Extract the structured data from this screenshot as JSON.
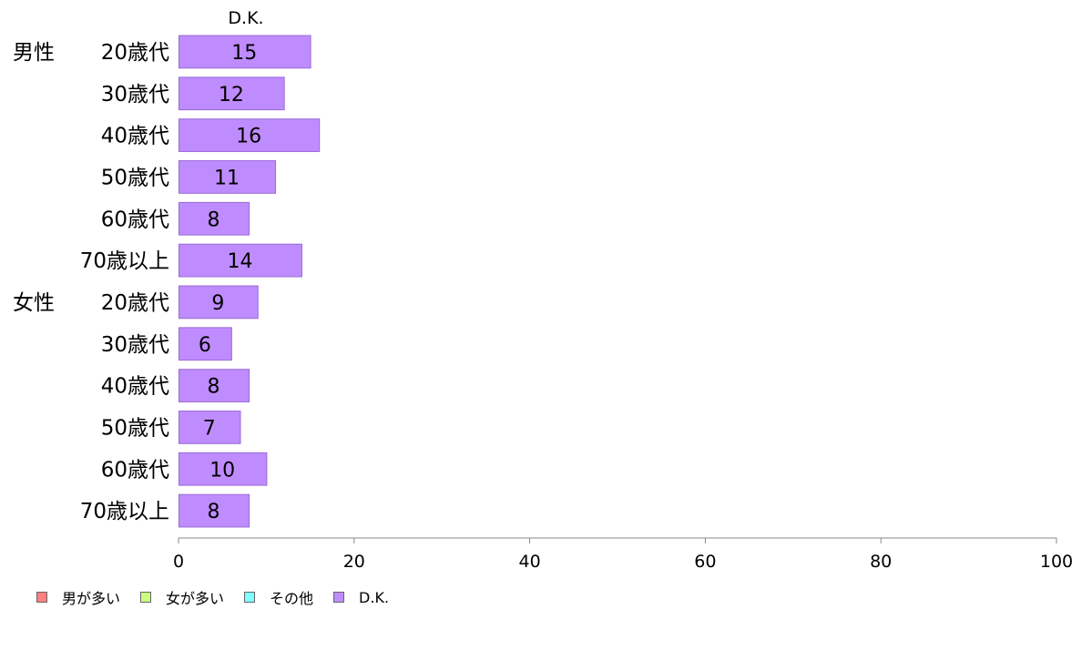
{
  "chart_data": {
    "type": "bar",
    "orientation": "horizontal",
    "series_header": "D.K.",
    "categories": [
      {
        "group": "男性",
        "label": "20歳代"
      },
      {
        "group": "",
        "label": "30歳代"
      },
      {
        "group": "",
        "label": "40歳代"
      },
      {
        "group": "",
        "label": "50歳代"
      },
      {
        "group": "",
        "label": "60歳代"
      },
      {
        "group": "",
        "label": "70歳以上"
      },
      {
        "group": "女性",
        "label": "20歳代"
      },
      {
        "group": "",
        "label": "30歳代"
      },
      {
        "group": "",
        "label": "40歳代"
      },
      {
        "group": "",
        "label": "50歳代"
      },
      {
        "group": "",
        "label": "60歳代"
      },
      {
        "group": "",
        "label": "70歳以上"
      }
    ],
    "series": [
      {
        "name": "D.K.",
        "values": [
          15,
          12,
          16,
          11,
          8,
          14,
          9,
          6,
          8,
          7,
          10,
          8
        ],
        "color": "#bf8cff"
      }
    ],
    "xlim": [
      0,
      100
    ],
    "xticks": [
      0,
      20,
      40,
      60,
      80,
      100
    ],
    "grid": false,
    "legend_position": "bottom-left",
    "legend": [
      {
        "name": "男が多い",
        "color": "#ff8080"
      },
      {
        "name": "女が多い",
        "color": "#ccff80"
      },
      {
        "name": "その他",
        "color": "#80ffff"
      },
      {
        "name": "D.K.",
        "color": "#bf8cff"
      }
    ]
  }
}
